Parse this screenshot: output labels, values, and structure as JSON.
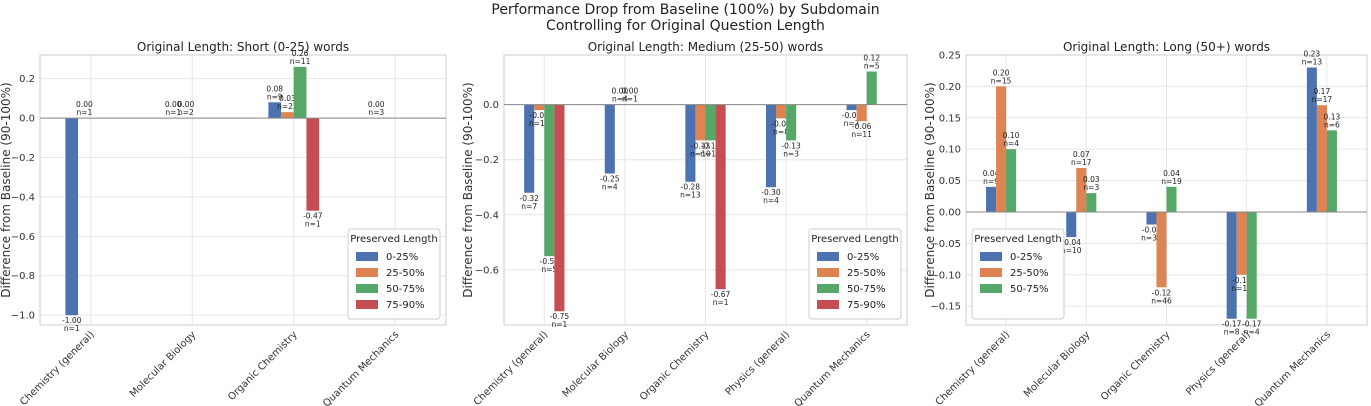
{
  "title": "Performance Drop from Baseline (100%) by Subdomain",
  "subtitle": "Controlling for Original Question Length",
  "colors": {
    "0-25%": "#4c72b0",
    "25-50%": "#dd8452",
    "50-75%": "#55a868",
    "75-90%": "#c44e52"
  },
  "chart_data": [
    {
      "type": "bar",
      "title": "Original Length: Short (0-25) words",
      "ylabel": "Difference from Baseline (90-100%)",
      "ylim": [
        -1.05,
        0.32
      ],
      "yticks": [
        0.2,
        0.0,
        -0.2,
        -0.4,
        -0.6,
        -0.8,
        -1.0
      ],
      "ytick_labels": [
        "0.2",
        "0.0",
        "−0.2",
        "−0.4",
        "−0.6",
        "−0.8",
        "−1.0"
      ],
      "categories": [
        "Chemistry (general)",
        "Molecular Biology",
        "Organic Chemistry",
        "Quantum Mechanics"
      ],
      "legend_title": "Preserved Length",
      "legend_position": "lower-right",
      "series": [
        {
          "name": "0-25%",
          "values": [
            -1.0,
            0.0,
            0.08,
            0.0
          ],
          "labels": [
            "-1.00",
            "0.00",
            "0.08",
            "0.00"
          ],
          "n": [
            "n=1",
            "n=1",
            "n=9",
            "n=3"
          ]
        },
        {
          "name": "25-50%",
          "values": [
            0.0,
            0.0,
            0.03,
            null
          ],
          "labels": [
            "0.00",
            "0.00",
            "0.03",
            ""
          ],
          "n": [
            "n=1",
            "n=2",
            "n=22",
            ""
          ]
        },
        {
          "name": "50-75%",
          "values": [
            null,
            null,
            0.26,
            null
          ],
          "labels": [
            "",
            "",
            "0.26",
            ""
          ],
          "n": [
            "",
            "",
            "n=11",
            ""
          ]
        },
        {
          "name": "75-90%",
          "values": [
            null,
            null,
            -0.47,
            null
          ],
          "labels": [
            "",
            "",
            "-0.47",
            ""
          ],
          "n": [
            "",
            "",
            "n=1",
            ""
          ]
        }
      ]
    },
    {
      "type": "bar",
      "title": "Original Length: Medium (25-50) words",
      "ylabel": "Difference from Baseline (90-100%)",
      "ylim": [
        -0.8,
        0.18
      ],
      "yticks": [
        0.0,
        -0.2,
        -0.4,
        -0.6
      ],
      "ytick_labels": [
        "0.0",
        "−0.2",
        "−0.4",
        "−0.6"
      ],
      "categories": [
        "Chemistry (general)",
        "Molecular Biology",
        "Organic Chemistry",
        "Physics (general)",
        "Quantum Mechanics"
      ],
      "legend_title": "Preserved Length",
      "legend_position": "lower-right",
      "series": [
        {
          "name": "0-25%",
          "values": [
            -0.32,
            -0.25,
            -0.28,
            -0.3,
            -0.02
          ],
          "labels": [
            "-0.32",
            "-0.25",
            "-0.28",
            "-0.30",
            "-0.02"
          ],
          "n": [
            "n=7",
            "n=4",
            "n=13",
            "n=4",
            "n=7"
          ]
        },
        {
          "name": "25-50%",
          "values": [
            -0.02,
            0.0,
            -0.13,
            -0.05,
            -0.06
          ],
          "labels": [
            "-0.02",
            "0.00",
            "-0.13",
            "-0.05",
            "-0.06"
          ],
          "n": [
            "n=11",
            "n=4",
            "n=10",
            "n=8",
            "n=11"
          ]
        },
        {
          "name": "50-75%",
          "values": [
            -0.55,
            0.0,
            -0.13,
            -0.13,
            0.12
          ],
          "labels": [
            "-0.55",
            "0.00",
            "-0.13",
            "-0.13",
            "0.12"
          ],
          "n": [
            "n=5",
            "n=1",
            "n=13",
            "n=3",
            "n=5"
          ]
        },
        {
          "name": "75-90%",
          "values": [
            -0.75,
            null,
            -0.67,
            null,
            null
          ],
          "labels": [
            "-0.75",
            "",
            "-0.67",
            "",
            ""
          ],
          "n": [
            "n=1",
            "",
            "n=1",
            "",
            ""
          ]
        }
      ]
    },
    {
      "type": "bar",
      "title": "Original Length: Long (50+) words",
      "ylabel": "Difference from Baseline (90-100%)",
      "ylim": [
        -0.18,
        0.25
      ],
      "yticks": [
        0.25,
        0.2,
        0.15,
        0.1,
        0.05,
        0.0,
        -0.05,
        -0.1,
        -0.15
      ],
      "ytick_labels": [
        "0.25",
        "0.20",
        "0.15",
        "0.10",
        "0.05",
        "0.00",
        "−0.05",
        "−0.10",
        "−0.15"
      ],
      "categories": [
        "Chemistry (general)",
        "Molecular Biology",
        "Organic Chemistry",
        "Physics (general)",
        "Quantum Mechanics"
      ],
      "legend_title": "Preserved Length",
      "legend_position": "lower-left",
      "series": [
        {
          "name": "0-25%",
          "values": [
            0.04,
            -0.04,
            -0.02,
            -0.17,
            0.23
          ],
          "labels": [
            "0.04",
            "-0.04",
            "-0.02",
            "-0.17",
            "0.23"
          ],
          "n": [
            "n=9",
            "n=10",
            "n=33",
            "n=8",
            "n=13"
          ]
        },
        {
          "name": "25-50%",
          "values": [
            0.2,
            0.07,
            -0.12,
            -0.1,
            0.17
          ],
          "labels": [
            "0.20",
            "0.07",
            "-0.12",
            "-0.10",
            "0.17"
          ],
          "n": [
            "n=15",
            "n=17",
            "n=46",
            "n=14",
            "n=17"
          ]
        },
        {
          "name": "50-75%",
          "values": [
            0.1,
            0.03,
            0.04,
            -0.17,
            0.13
          ],
          "labels": [
            "0.10",
            "0.03",
            "0.04",
            "-0.17",
            "0.13"
          ],
          "n": [
            "n=4",
            "n=3",
            "n=19",
            "n=4",
            "n=6"
          ]
        },
        {
          "name": "75-90%",
          "values": [
            null,
            null,
            null,
            null,
            null
          ],
          "labels": [
            "",
            "",
            "",
            "",
            ""
          ],
          "n": [
            "",
            "",
            "",
            "",
            ""
          ]
        }
      ]
    }
  ]
}
